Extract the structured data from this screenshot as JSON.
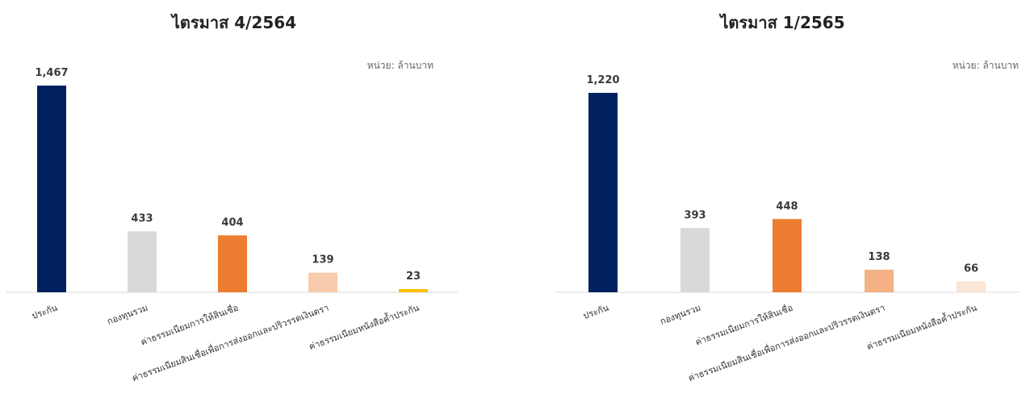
{
  "chart_data": [
    {
      "type": "bar",
      "title": "ไตรมาส 4/2564",
      "unit_label": "หน่วย: ล้านบาท",
      "categories": [
        "ประกัน",
        "กองทุนรวม",
        "ค่าธรรมเนียมการให้สินเชื่อ",
        "ค่าธรรมเนียมสินเชื่อเพื่อการส่งออกและปริวรรตเงินตรา",
        "ค่าธรรมเนียมหนังสือค้ำประกัน"
      ],
      "values": [
        1467,
        433,
        404,
        139,
        23
      ],
      "value_labels": [
        "1,467",
        "433",
        "404",
        "139",
        "23"
      ],
      "colors": [
        "#002060",
        "#d9d9d9",
        "#ed7d31",
        "#f8cbad",
        "#ffc000"
      ],
      "ylim": [
        0,
        1467
      ],
      "grid": false
    },
    {
      "type": "bar",
      "title": "ไตรมาส 1/2565",
      "unit_label": "หน่วย: ล้านบาท",
      "categories": [
        "ประกัน",
        "กองทุนรวม",
        "ค่าธรรมเนียมการให้สินเชื่อ",
        "ค่าธรรมเนียมสินเชื่อเพื่อการส่งออกและปริวรรตเงินตรา",
        "ค่าธรรมเนียมหนังสือค้ำประกัน"
      ],
      "values": [
        1220,
        393,
        448,
        138,
        66
      ],
      "value_labels": [
        "1,220",
        "393",
        "448",
        "138",
        "66"
      ],
      "colors": [
        "#002060",
        "#d9d9d9",
        "#ed7d31",
        "#f4b183",
        "#fbe5d6"
      ],
      "ylim": [
        0,
        1220
      ],
      "grid": false
    }
  ]
}
